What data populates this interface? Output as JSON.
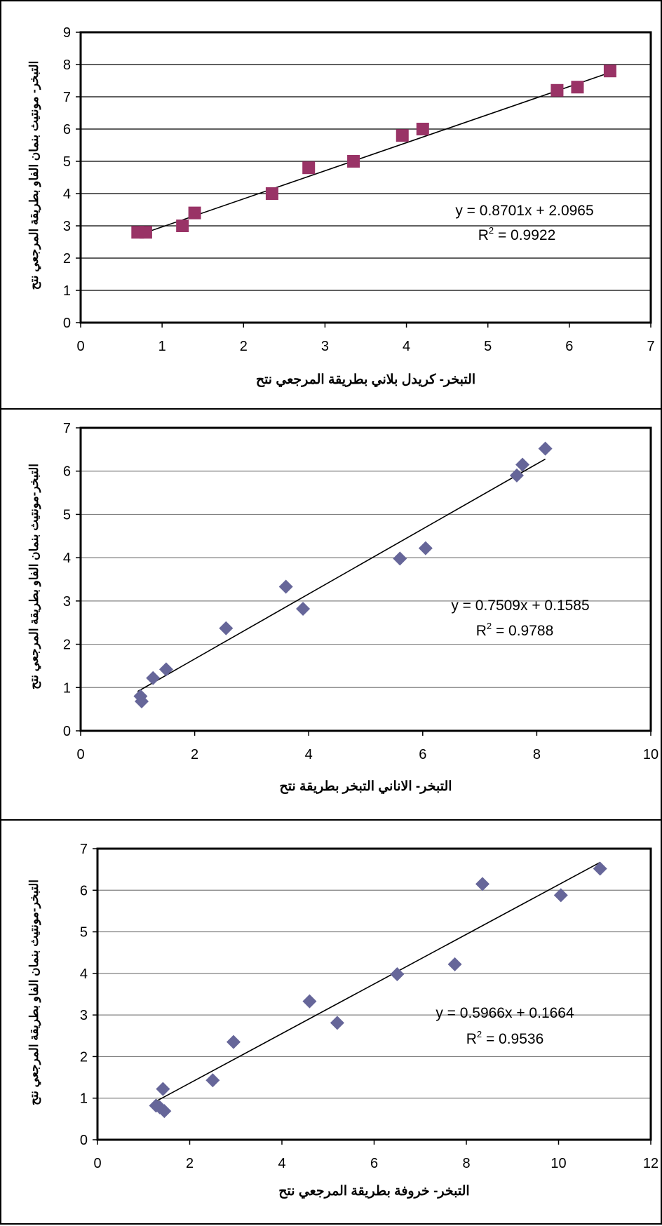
{
  "chart_data": [
    {
      "type": "scatter",
      "title": "",
      "xlabel": "التبخر- كريدل بلاني بطريقة المرجعي نتح",
      "ylabel": "التبخر- مونتيث بنمان الفاو بطريقة المرجعي نتح",
      "xlim": [
        0,
        7
      ],
      "ylim": [
        0,
        9
      ],
      "xticks": [
        0,
        1,
        2,
        3,
        4,
        5,
        6,
        7
      ],
      "yticks": [
        0,
        1,
        2,
        3,
        4,
        5,
        6,
        7,
        8,
        9
      ],
      "grid": "horizontal",
      "marker": "square",
      "marker_color": "#993366",
      "points": [
        {
          "x": 0.7,
          "y": 2.8
        },
        {
          "x": 0.8,
          "y": 2.8
        },
        {
          "x": 1.25,
          "y": 3.0
        },
        {
          "x": 1.4,
          "y": 3.4
        },
        {
          "x": 2.35,
          "y": 4.0
        },
        {
          "x": 2.8,
          "y": 4.8
        },
        {
          "x": 3.35,
          "y": 5.0
        },
        {
          "x": 3.95,
          "y": 5.8
        },
        {
          "x": 4.2,
          "y": 6.0
        },
        {
          "x": 5.85,
          "y": 7.2
        },
        {
          "x": 6.1,
          "y": 7.3
        },
        {
          "x": 6.5,
          "y": 7.8
        }
      ],
      "trendline": {
        "slope": 0.8701,
        "intercept": 2.0965,
        "x_start": 0.7,
        "x_end": 6.5
      },
      "equation": "y = 0.8701x + 2.0965",
      "r2_label": "R",
      "r2_sup": "2",
      "r2_value": " = 0.9922"
    },
    {
      "type": "scatter",
      "title": "",
      "xlabel": "التبخر- الاناني التبخر بطريقة نتح",
      "ylabel": "التبخر-مونتيث بنمان الفاو بطريقة المرجعي نتح",
      "xlim": [
        0,
        10
      ],
      "ylim": [
        0,
        7
      ],
      "xticks": [
        0,
        2,
        4,
        6,
        8,
        10
      ],
      "yticks": [
        0,
        1,
        2,
        3,
        4,
        5,
        6,
        7
      ],
      "grid": "horizontal",
      "marker": "diamond",
      "marker_color": "#666699",
      "points": [
        {
          "x": 1.05,
          "y": 0.8
        },
        {
          "x": 1.07,
          "y": 0.68
        },
        {
          "x": 1.27,
          "y": 1.22
        },
        {
          "x": 1.5,
          "y": 1.42
        },
        {
          "x": 2.55,
          "y": 2.37
        },
        {
          "x": 3.6,
          "y": 3.33
        },
        {
          "x": 3.9,
          "y": 2.82
        },
        {
          "x": 5.6,
          "y": 3.98
        },
        {
          "x": 6.05,
          "y": 4.22
        },
        {
          "x": 7.65,
          "y": 5.9
        },
        {
          "x": 7.75,
          "y": 6.15
        },
        {
          "x": 8.15,
          "y": 6.52
        }
      ],
      "trendline": {
        "slope": 0.7509,
        "intercept": 0.1585,
        "x_start": 1.0,
        "x_end": 8.15
      },
      "equation": "y = 0.7509x + 0.1585",
      "r2_label": "R",
      "r2_sup": "2",
      "r2_value": " = 0.9788"
    },
    {
      "type": "scatter",
      "title": "",
      "xlabel": "التبخر- خروفة بطريقة المرجعي نتح",
      "ylabel": "التبخر-مونتيث بنمان الفاو بطريقة المرجعي نتح",
      "xlim": [
        0,
        12
      ],
      "ylim": [
        0,
        7
      ],
      "xticks": [
        0,
        2,
        4,
        6,
        8,
        10,
        12
      ],
      "yticks": [
        0,
        1,
        2,
        3,
        4,
        5,
        6,
        7
      ],
      "grid": "horizontal",
      "marker": "diamond",
      "marker_color": "#666699",
      "points": [
        {
          "x": 1.27,
          "y": 0.82
        },
        {
          "x": 1.35,
          "y": 0.78
        },
        {
          "x": 1.42,
          "y": 1.22
        },
        {
          "x": 1.45,
          "y": 0.69
        },
        {
          "x": 2.5,
          "y": 1.43
        },
        {
          "x": 2.95,
          "y": 2.35
        },
        {
          "x": 4.6,
          "y": 3.33
        },
        {
          "x": 5.2,
          "y": 2.81
        },
        {
          "x": 6.5,
          "y": 3.98
        },
        {
          "x": 7.75,
          "y": 4.22
        },
        {
          "x": 8.35,
          "y": 6.15
        },
        {
          "x": 10.05,
          "y": 5.88
        },
        {
          "x": 10.9,
          "y": 6.52
        }
      ],
      "trendline": {
        "slope": 0.5966,
        "intercept": 0.1664,
        "x_start": 1.27,
        "x_end": 10.9
      },
      "equation": "y = 0.5966x + 0.1664",
      "r2_label": "R",
      "r2_sup": "2",
      "r2_value": " = 0.9536"
    }
  ]
}
